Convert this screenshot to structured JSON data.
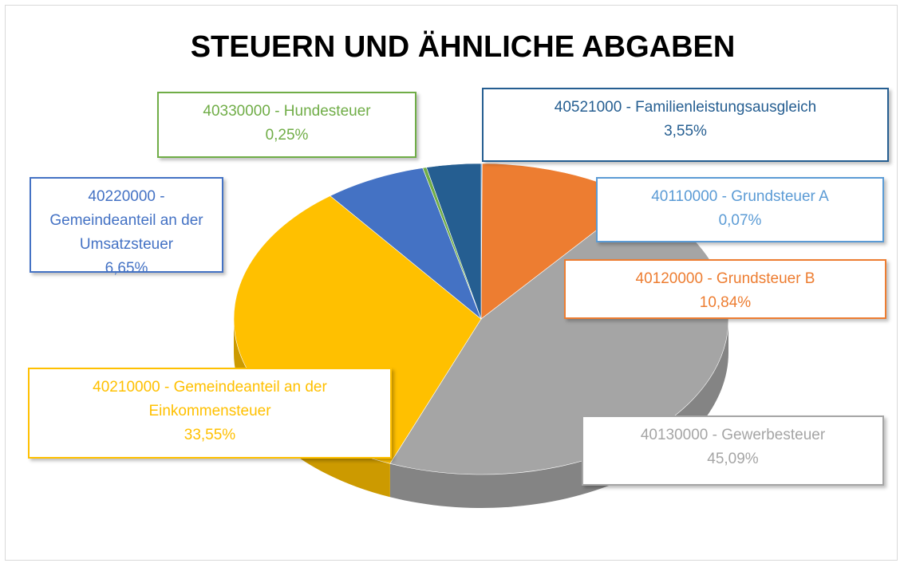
{
  "chart_data": {
    "type": "pie",
    "title": "STEUERN UND ÄHNLICHE ABGABEN",
    "categories": [
      "40110000 - Grundsteuer A",
      "40120000 - Grundsteuer B",
      "40130000 - Gewerbesteuer",
      "40210000 - Gemeindeanteil an der Einkommensteuer",
      "40220000 - Gemeindeanteil an der Umsatzsteuer",
      "40330000 - Hundesteuer",
      "40521000 - Familienleistungsausgleich"
    ],
    "values": [
      0.07,
      10.84,
      45.09,
      33.55,
      6.65,
      0.25,
      3.55
    ],
    "value_labels": [
      "0,07%",
      "10,84%",
      "45,09%",
      "33,55%",
      "6,65%",
      "0,25%",
      "3,55%"
    ],
    "colors": [
      "#5b9bd5",
      "#ed7d31",
      "#a5a5a5",
      "#ffc000",
      "#4472c4",
      "#70ad47",
      "#255e91"
    ]
  }
}
